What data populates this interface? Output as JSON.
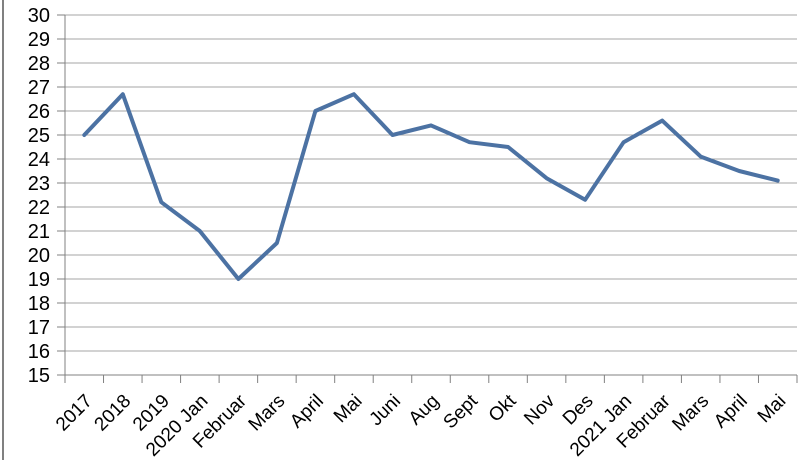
{
  "window": {
    "background_color": "#ffffff",
    "left_border_color": "#808080"
  },
  "chart_data": {
    "type": "line",
    "title": "",
    "xlabel": "",
    "ylabel": "",
    "categories": [
      "2017",
      "2018",
      "2019",
      "2020 Jan",
      "Februar",
      "Mars",
      "April",
      "Mai",
      "Juni",
      "Aug",
      "Sept",
      "Okt",
      "Nov",
      "Des",
      "2021 Jan",
      "Februar",
      "Mars",
      "April",
      "Mai"
    ],
    "values": [
      25.0,
      26.7,
      22.2,
      21.0,
      19.0,
      20.5,
      26.0,
      26.7,
      25.0,
      25.4,
      24.7,
      24.5,
      23.2,
      22.3,
      24.7,
      25.6,
      24.1,
      23.5,
      23.1
    ],
    "ylim": [
      15,
      30
    ],
    "ytick_step": 1,
    "grid": true,
    "legend": "none",
    "x_label_rotation": -45,
    "series_color": "#4C72A3",
    "gridline_color": "#A6A6A6",
    "axis_color": "#808080",
    "label_color": "#000000"
  }
}
